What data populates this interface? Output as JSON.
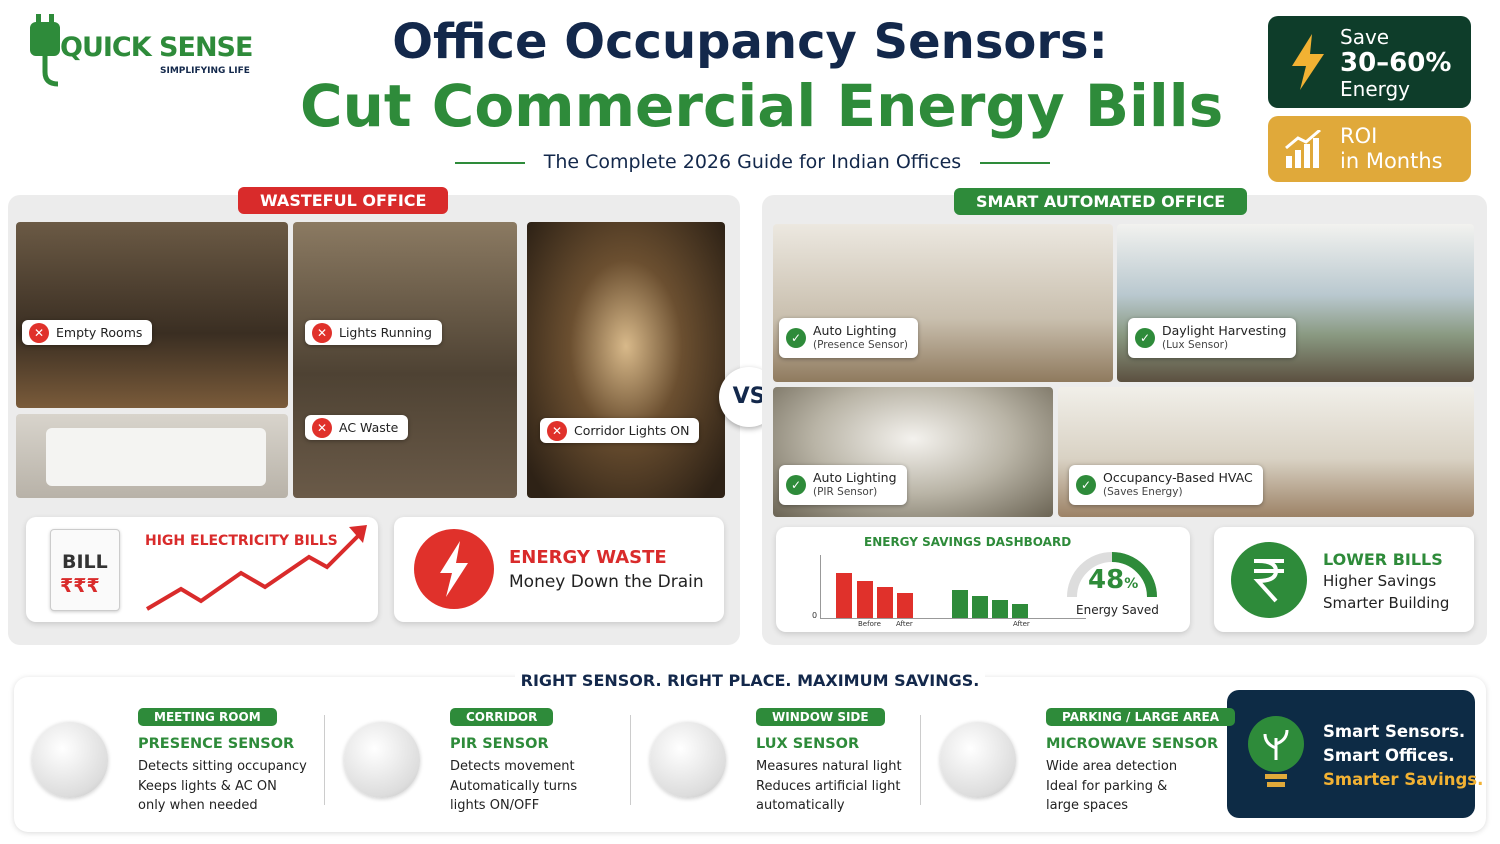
{
  "logo": {
    "name": "QUICK SENSE",
    "tagline": "SIMPLIFYING LIFE"
  },
  "header": {
    "title_line1": "Office Occupancy Sensors:",
    "title_line2": "Cut Commercial Energy Bills",
    "subtitle": "The Complete 2026 Guide for Indian Offices"
  },
  "badges": {
    "save": [
      "Save",
      "30–60%",
      "Energy"
    ],
    "roi": [
      "ROI",
      "in Months"
    ]
  },
  "wasteful": {
    "title": "WASTEFUL OFFICE",
    "labels": [
      "Empty Rooms",
      "Lights Running",
      "AC Waste",
      "Corridor Lights ON"
    ],
    "bill": {
      "word": "BILL",
      "symbols": "₹₹₹",
      "caption": "HIGH ELECTRICITY BILLS"
    },
    "waste": {
      "title": "ENERGY WASTE",
      "text": "Money Down the Drain"
    }
  },
  "vs": "VS",
  "smart": {
    "title": "SMART AUTOMATED OFFICE",
    "labels": [
      [
        "Auto Lighting",
        "(Presence Sensor)"
      ],
      [
        "Daylight Harvesting",
        "(Lux Sensor)"
      ],
      [
        "Auto Lighting",
        "(PIR Sensor)"
      ],
      [
        "Occupancy-Based HVAC",
        "(Saves Energy)"
      ]
    ],
    "dashboard": {
      "title": "ENERGY SAVINGS DASHBOARD",
      "zero": "0",
      "axis": [
        "Before",
        "After",
        "After"
      ],
      "saved_number": "48",
      "saved_unit": "%",
      "saved_label": "Energy Saved"
    },
    "lower": {
      "title": "LOWER BILLS",
      "lines": [
        "Higher Savings",
        "Smarter Building"
      ]
    }
  },
  "sensors_section": {
    "title": "RIGHT SENSOR. RIGHT PLACE. MAXIMUM SAVINGS.",
    "sensors": [
      {
        "tag": "MEETING ROOM",
        "name": "PRESENCE SENSOR",
        "lines": [
          "Detects sitting occupancy",
          "Keeps lights & AC ON",
          "only when needed"
        ]
      },
      {
        "tag": "CORRIDOR",
        "name": "PIR SENSOR",
        "lines": [
          "Detects movement",
          "Automatically turns",
          "lights ON/OFF"
        ]
      },
      {
        "tag": "WINDOW SIDE",
        "name": "LUX SENSOR",
        "lines": [
          "Measures natural light",
          "Reduces artificial light",
          "automatically"
        ]
      },
      {
        "tag": "PARKING / LARGE AREA",
        "name": "MICROWAVE SENSOR",
        "lines": [
          "Wide area detection",
          "Ideal for parking &",
          "large spaces"
        ]
      }
    ],
    "closing": [
      "Smart Sensors.",
      "Smart Offices.",
      "Smarter Savings."
    ]
  }
}
